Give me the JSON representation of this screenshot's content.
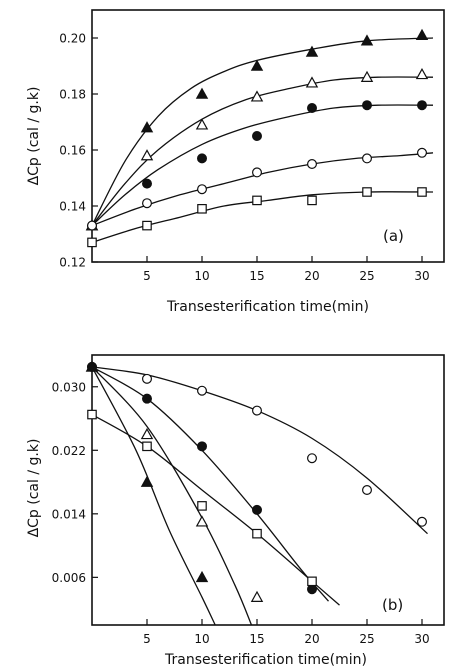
{
  "chart_data": [
    {
      "type": "scatter",
      "panel_label": "(a)",
      "xlabel": "Transesterification time(min)",
      "ylabel": "ΔCp (cal / g.k)",
      "xlim": [
        0,
        32
      ],
      "ylim": [
        0.12,
        0.21
      ],
      "x_ticks": [
        5,
        10,
        15,
        20,
        25,
        30
      ],
      "x_tick_labels": [
        "5",
        "10",
        "15",
        "20",
        "25",
        "30"
      ],
      "y_ticks": [
        0.12,
        0.14,
        0.16,
        0.18,
        0.2
      ],
      "y_tick_labels": [
        "0.12",
        "0.14",
        "0.16",
        "0.18",
        "0.20"
      ],
      "grid": false,
      "series": [
        {
          "marker": "filled-triangle",
          "x": [
            0,
            5,
            10,
            15,
            20,
            25,
            30
          ],
          "y": [
            0.133,
            0.168,
            0.18,
            0.19,
            0.195,
            0.199,
            0.201
          ],
          "curve": [
            [
              0,
              0.133
            ],
            [
              3,
              0.156
            ],
            [
              6,
              0.172
            ],
            [
              9,
              0.182
            ],
            [
              12,
              0.188
            ],
            [
              15,
              0.192
            ],
            [
              20,
              0.196
            ],
            [
              25,
              0.199
            ],
            [
              31,
              0.2
            ]
          ]
        },
        {
          "marker": "open-triangle",
          "x": [
            0,
            5,
            10,
            15,
            20,
            25,
            30
          ],
          "y": [
            0.133,
            0.158,
            0.169,
            0.179,
            0.184,
            0.186,
            0.187
          ],
          "curve": [
            [
              0,
              0.133
            ],
            [
              3,
              0.148
            ],
            [
              6,
              0.16
            ],
            [
              10,
              0.171
            ],
            [
              14,
              0.178
            ],
            [
              18,
              0.182
            ],
            [
              22,
              0.185
            ],
            [
              26,
              0.186
            ],
            [
              31,
              0.186
            ]
          ]
        },
        {
          "marker": "filled-circle",
          "x": [
            0,
            5,
            10,
            15,
            20,
            25,
            30
          ],
          "y": [
            0.133,
            0.148,
            0.157,
            0.165,
            0.175,
            0.176,
            0.176
          ],
          "curve": [
            [
              0,
              0.133
            ],
            [
              3,
              0.144
            ],
            [
              6,
              0.153
            ],
            [
              10,
              0.162
            ],
            [
              14,
              0.168
            ],
            [
              18,
              0.172
            ],
            [
              22,
              0.175
            ],
            [
              26,
              0.176
            ],
            [
              31,
              0.176
            ]
          ]
        },
        {
          "marker": "open-circle",
          "x": [
            0,
            5,
            10,
            15,
            20,
            25,
            30
          ],
          "y": [
            0.133,
            0.141,
            0.146,
            0.152,
            0.155,
            0.157,
            0.159
          ],
          "curve": [
            [
              0,
              0.133
            ],
            [
              4,
              0.139
            ],
            [
              8,
              0.144
            ],
            [
              12,
              0.148
            ],
            [
              16,
              0.152
            ],
            [
              20,
              0.155
            ],
            [
              24,
              0.157
            ],
            [
              28,
              0.158
            ],
            [
              31,
              0.159
            ]
          ]
        },
        {
          "marker": "open-square",
          "x": [
            0,
            5,
            10,
            15,
            20,
            25,
            30
          ],
          "y": [
            0.127,
            0.133,
            0.139,
            0.142,
            0.142,
            0.145,
            0.145
          ],
          "curve": [
            [
              0,
              0.127
            ],
            [
              4,
              0.132
            ],
            [
              8,
              0.136
            ],
            [
              12,
              0.14
            ],
            [
              16,
              0.142
            ],
            [
              20,
              0.144
            ],
            [
              25,
              0.145
            ],
            [
              31,
              0.145
            ]
          ]
        }
      ]
    },
    {
      "type": "scatter",
      "panel_label": "(b)",
      "xlabel": "Transesterification time(min)",
      "ylabel": "ΔCp (cal / g.k)",
      "xlim": [
        0,
        32
      ],
      "ylim": [
        0,
        0.034
      ],
      "x_ticks": [
        5,
        10,
        15,
        20,
        25,
        30
      ],
      "x_tick_labels": [
        "5",
        "10",
        "15",
        "20",
        "25",
        "30"
      ],
      "y_ticks": [
        0.006,
        0.014,
        0.022,
        0.03
      ],
      "y_tick_labels": [
        "0.006",
        "0.014",
        "0.022",
        "0.030"
      ],
      "grid": false,
      "series": [
        {
          "marker": "open-circle",
          "x": [
            0,
            5,
            10,
            15,
            20,
            25,
            30
          ],
          "y": [
            0.0325,
            0.031,
            0.0295,
            0.027,
            0.021,
            0.017,
            0.013
          ],
          "curve": [
            [
              0,
              0.0325
            ],
            [
              5,
              0.0315
            ],
            [
              10,
              0.0295
            ],
            [
              15,
              0.027
            ],
            [
              20,
              0.0235
            ],
            [
              25,
              0.0185
            ],
            [
              30.5,
              0.0115
            ]
          ]
        },
        {
          "marker": "filled-circle",
          "x": [
            0,
            5,
            10,
            15,
            20
          ],
          "y": [
            0.0325,
            0.0285,
            0.0225,
            0.0145,
            0.0045
          ],
          "curve": [
            [
              0,
              0.0325
            ],
            [
              5,
              0.0285
            ],
            [
              10,
              0.022
            ],
            [
              15,
              0.014
            ],
            [
              19,
              0.007
            ],
            [
              21.5,
              0.003
            ]
          ]
        },
        {
          "marker": "open-square",
          "x": [
            0,
            5,
            10,
            15,
            20
          ],
          "y": [
            0.0265,
            0.0225,
            0.015,
            0.0115,
            0.0055
          ],
          "curve": [
            [
              0,
              0.0265
            ],
            [
              5,
              0.0225
            ],
            [
              10,
              0.017
            ],
            [
              15,
              0.0115
            ],
            [
              20,
              0.0055
            ],
            [
              22.5,
              0.0025
            ]
          ]
        },
        {
          "marker": "open-triangle",
          "x": [
            0,
            5,
            10,
            15
          ],
          "y": [
            0.0325,
            0.024,
            0.013,
            0.0035
          ],
          "curve": [
            [
              0,
              0.0325
            ],
            [
              5,
              0.025
            ],
            [
              10,
              0.0135
            ],
            [
              13,
              0.005
            ],
            [
              14.5,
              0
            ]
          ]
        },
        {
          "marker": "filled-triangle",
          "x": [
            0,
            5,
            10
          ],
          "y": [
            0.0325,
            0.018,
            0.006
          ],
          "curve": [
            [
              0,
              0.0325
            ],
            [
              4,
              0.022
            ],
            [
              7,
              0.012
            ],
            [
              10,
              0.0035
            ],
            [
              11.2,
              0
            ]
          ]
        }
      ]
    }
  ]
}
